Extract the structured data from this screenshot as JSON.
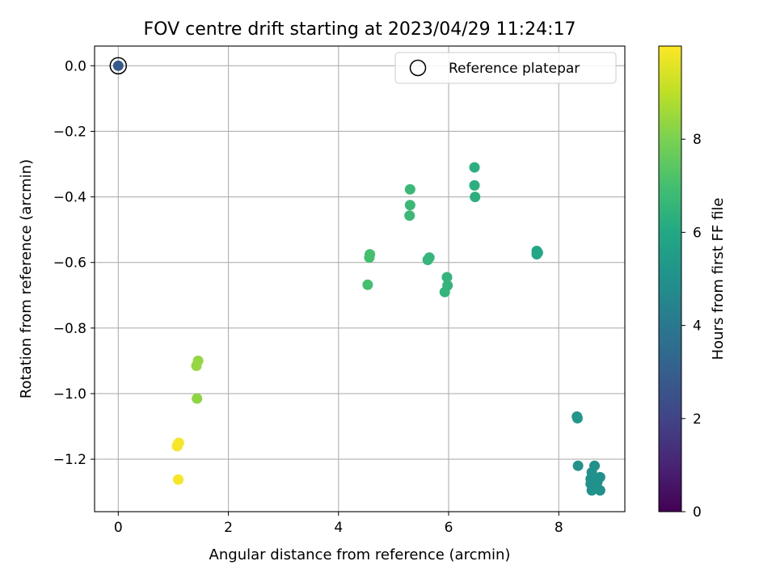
{
  "chart_data": {
    "type": "scatter",
    "title": "FOV centre drift starting at 2023/04/29 11:24:17",
    "xlabel": "Angular distance from reference (arcmin)",
    "ylabel": "Rotation from reference (arcmin)",
    "xlim": [
      -0.43,
      9.2
    ],
    "ylim": [
      -1.36,
      0.06
    ],
    "xticks": [
      0,
      2,
      4,
      6,
      8
    ],
    "xtick_labels": [
      "0",
      "2",
      "4",
      "6",
      "8"
    ],
    "yticks": [
      0.0,
      -0.2,
      -0.4,
      -0.6,
      -0.8,
      -1.0,
      -1.2
    ],
    "ytick_labels": [
      "0.0",
      "−0.2",
      "−0.4",
      "−0.6",
      "−0.8",
      "−1.0",
      "−1.2"
    ],
    "grid": true,
    "legend": {
      "position": "top-right",
      "entries": [
        "Reference platepar"
      ]
    },
    "reference": {
      "x": 0.0,
      "y": 0.0,
      "hours": 2.8,
      "label": "Reference platepar"
    },
    "colorbar": {
      "label": "Hours from first FF file",
      "range": [
        0,
        10
      ],
      "ticks": [
        0,
        2,
        4,
        6,
        8
      ],
      "tick_labels": [
        "0",
        "2",
        "4",
        "6",
        "8"
      ],
      "colormap": "viridis"
    },
    "points": [
      {
        "x": 8.33,
        "y": -1.07,
        "hours": 5.2
      },
      {
        "x": 8.34,
        "y": -1.075,
        "hours": 5.2
      },
      {
        "x": 8.35,
        "y": -1.22,
        "hours": 5.1
      },
      {
        "x": 8.6,
        "y": -1.24,
        "hours": 5.0
      },
      {
        "x": 8.65,
        "y": -1.22,
        "hours": 5.0
      },
      {
        "x": 8.58,
        "y": -1.26,
        "hours": 5.0
      },
      {
        "x": 8.58,
        "y": -1.275,
        "hours": 5.0
      },
      {
        "x": 8.75,
        "y": -1.255,
        "hours": 5.0
      },
      {
        "x": 8.6,
        "y": -1.295,
        "hours": 5.0
      },
      {
        "x": 8.75,
        "y": -1.295,
        "hours": 5.0
      },
      {
        "x": 8.7,
        "y": -1.27,
        "hours": 5.0
      },
      {
        "x": 7.6,
        "y": -0.565,
        "hours": 5.9
      },
      {
        "x": 7.62,
        "y": -0.57,
        "hours": 5.9
      },
      {
        "x": 7.6,
        "y": -0.575,
        "hours": 5.9
      },
      {
        "x": 6.47,
        "y": -0.31,
        "hours": 6.3
      },
      {
        "x": 6.47,
        "y": -0.365,
        "hours": 6.3
      },
      {
        "x": 6.48,
        "y": -0.4,
        "hours": 6.3
      },
      {
        "x": 5.97,
        "y": -0.645,
        "hours": 6.5
      },
      {
        "x": 5.98,
        "y": -0.67,
        "hours": 6.5
      },
      {
        "x": 5.93,
        "y": -0.69,
        "hours": 6.5
      },
      {
        "x": 5.65,
        "y": -0.585,
        "hours": 6.6
      },
      {
        "x": 5.62,
        "y": -0.592,
        "hours": 6.6
      },
      {
        "x": 5.3,
        "y": -0.377,
        "hours": 6.7
      },
      {
        "x": 5.3,
        "y": -0.425,
        "hours": 6.7
      },
      {
        "x": 5.29,
        "y": -0.457,
        "hours": 6.7
      },
      {
        "x": 4.57,
        "y": -0.575,
        "hours": 7.0
      },
      {
        "x": 4.56,
        "y": -0.585,
        "hours": 7.0
      },
      {
        "x": 4.53,
        "y": -0.668,
        "hours": 7.0
      },
      {
        "x": 1.45,
        "y": -0.9,
        "hours": 8.4
      },
      {
        "x": 1.42,
        "y": -0.915,
        "hours": 8.4
      },
      {
        "x": 1.43,
        "y": -1.015,
        "hours": 8.3
      },
      {
        "x": 1.1,
        "y": -1.15,
        "hours": 9.9
      },
      {
        "x": 1.08,
        "y": -1.155,
        "hours": 9.9
      },
      {
        "x": 1.07,
        "y": -1.16,
        "hours": 9.9
      },
      {
        "x": 1.09,
        "y": -1.262,
        "hours": 9.9
      }
    ]
  }
}
